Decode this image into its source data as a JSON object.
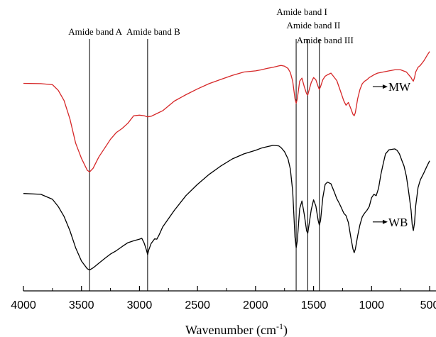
{
  "chart_data": {
    "type": "line",
    "xlabel": "Wavenumber (cm",
    "xlabel_sup": "-1",
    "xlabel_end": ")",
    "xlim": [
      4000,
      500
    ],
    "x_ticks": [
      {
        "value": 4000,
        "label": "4000"
      },
      {
        "value": 3500,
        "label": "3500"
      },
      {
        "value": 3000,
        "label": "3000"
      },
      {
        "value": 2500,
        "label": "2500"
      },
      {
        "value": 2000,
        "label": "2000"
      },
      {
        "value": 1500,
        "label": "1500"
      },
      {
        "value": 1000,
        "label": "1000"
      },
      {
        "value": 500,
        "label": "500"
      }
    ],
    "ylim": [
      0,
      100
    ],
    "y_axis_visible": false,
    "grid": false,
    "reference_lines": [
      {
        "x": 3430,
        "label": "Amide band A"
      },
      {
        "x": 2930,
        "label": "Amide band B"
      },
      {
        "x": 1650,
        "label": "Amide band I"
      },
      {
        "x": 1550,
        "label": "Amide band II"
      },
      {
        "x": 1450,
        "label": "Amide band III"
      }
    ],
    "series": [
      {
        "name": "MW",
        "color": "#d62728",
        "x": [
          4000,
          3850,
          3750,
          3700,
          3650,
          3600,
          3550,
          3500,
          3450,
          3430,
          3400,
          3350,
          3300,
          3250,
          3200,
          3150,
          3100,
          3050,
          3000,
          2960,
          2930,
          2900,
          2850,
          2800,
          2700,
          2600,
          2500,
          2400,
          2300,
          2200,
          2100,
          2000,
          1950,
          1900,
          1850,
          1800,
          1780,
          1750,
          1720,
          1700,
          1680,
          1660,
          1650,
          1640,
          1620,
          1600,
          1580,
          1560,
          1550,
          1540,
          1520,
          1500,
          1480,
          1460,
          1450,
          1440,
          1420,
          1400,
          1380,
          1350,
          1300,
          1270,
          1240,
          1220,
          1200,
          1180,
          1160,
          1150,
          1140,
          1120,
          1100,
          1080,
          1060,
          1040,
          1020,
          1000,
          980,
          950,
          900,
          850,
          800,
          750,
          700,
          680,
          660,
          650,
          640,
          630,
          620,
          600,
          580,
          550,
          520,
          500
        ],
        "y": [
          75.0,
          74.9,
          74.5,
          72.5,
          68.8,
          62.2,
          53.4,
          47.9,
          43.6,
          43.0,
          44.3,
          48.4,
          51.6,
          54.8,
          57.2,
          58.7,
          60.6,
          63.3,
          63.5,
          63.3,
          62.9,
          63.1,
          64.1,
          65.1,
          68.6,
          70.9,
          73.0,
          74.9,
          76.4,
          77.9,
          79.1,
          79.5,
          79.9,
          80.4,
          80.8,
          81.3,
          81.5,
          81.2,
          80.4,
          78.9,
          75.8,
          69.5,
          67.8,
          69.5,
          75.8,
          76.9,
          73.8,
          71.2,
          70.8,
          72.3,
          75.3,
          77.1,
          76.3,
          73.8,
          72.8,
          73.8,
          76.3,
          77.6,
          78.1,
          78.7,
          76.0,
          72.4,
          68.7,
          67.1,
          68.1,
          66.0,
          63.8,
          63.3,
          64.4,
          69.5,
          72.8,
          74.9,
          75.8,
          76.3,
          77.1,
          77.6,
          78.1,
          78.7,
          79.1,
          79.5,
          79.9,
          79.9,
          79.1,
          78.1,
          77.1,
          76.3,
          75.8,
          77.1,
          79.1,
          80.8,
          81.5,
          83.1,
          85.2,
          86.5
        ]
      },
      {
        "name": "WB",
        "color": "#000000",
        "x": [
          4000,
          3850,
          3750,
          3700,
          3650,
          3600,
          3550,
          3500,
          3450,
          3430,
          3400,
          3350,
          3300,
          3250,
          3200,
          3150,
          3100,
          3050,
          3000,
          2980,
          2960,
          2940,
          2930,
          2920,
          2900,
          2870,
          2850,
          2830,
          2800,
          2700,
          2600,
          2500,
          2400,
          2300,
          2200,
          2100,
          2000,
          1950,
          1900,
          1850,
          1800,
          1780,
          1750,
          1720,
          1700,
          1680,
          1660,
          1650,
          1640,
          1620,
          1600,
          1580,
          1560,
          1550,
          1540,
          1520,
          1500,
          1480,
          1460,
          1450,
          1440,
          1420,
          1400,
          1380,
          1350,
          1320,
          1300,
          1280,
          1260,
          1240,
          1220,
          1200,
          1180,
          1160,
          1150,
          1140,
          1120,
          1100,
          1080,
          1060,
          1040,
          1020,
          1000,
          980,
          960,
          940,
          920,
          900,
          880,
          850,
          800,
          780,
          760,
          740,
          720,
          700,
          680,
          660,
          650,
          640,
          630,
          620,
          600,
          580,
          550,
          520,
          500
        ],
        "y": [
          35.2,
          34.9,
          33.1,
          30.5,
          26.9,
          21.8,
          15.6,
          10.8,
          8.0,
          7.6,
          8.3,
          10.0,
          11.7,
          13.3,
          14.5,
          16.0,
          17.4,
          18.1,
          18.7,
          19.0,
          17.3,
          14.8,
          13.1,
          14.8,
          17.1,
          18.8,
          18.7,
          20.3,
          23.1,
          29.1,
          34.4,
          38.5,
          42.1,
          45.1,
          47.7,
          49.5,
          50.8,
          51.6,
          52.1,
          52.6,
          52.4,
          51.8,
          50.3,
          47.7,
          44.0,
          36.0,
          19.4,
          15.6,
          18.1,
          29.7,
          32.5,
          27.6,
          21.7,
          20.8,
          23.6,
          29.3,
          32.9,
          30.7,
          25.4,
          23.8,
          25.4,
          33.7,
          38.5,
          39.3,
          38.7,
          35.6,
          33.3,
          31.8,
          30.0,
          28.1,
          27.2,
          24.7,
          19.6,
          15.1,
          13.8,
          15.1,
          19.9,
          23.9,
          26.8,
          28.1,
          29.1,
          30.5,
          33.7,
          34.9,
          34.4,
          37.1,
          42.1,
          45.9,
          49.5,
          51.0,
          51.3,
          50.8,
          49.5,
          47.2,
          45.1,
          41.4,
          35.6,
          29.1,
          23.9,
          21.8,
          24.7,
          30.7,
          37.3,
          40.1,
          42.6,
          45.3,
          47.0
        ]
      }
    ]
  }
}
